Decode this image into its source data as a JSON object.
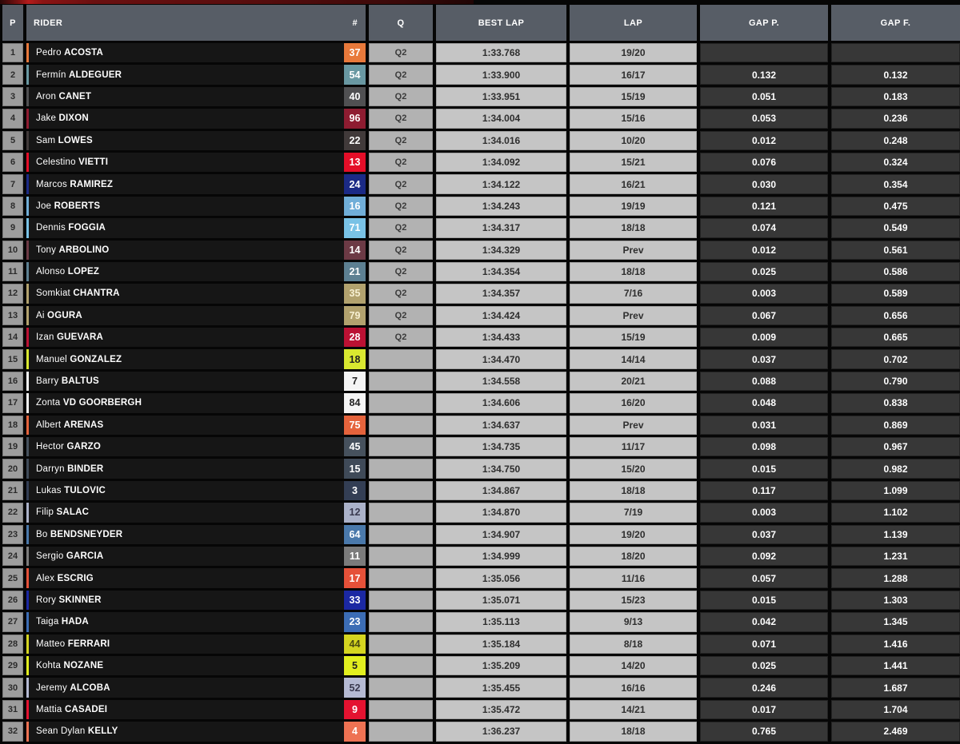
{
  "colors": {
    "top_bar_red": "#8a1414",
    "header_bg": "#575d66",
    "position_cell_bg": "#9d9d9d",
    "rider_cell_bg": "#161616",
    "q_cell_bg": "#b2b2b2",
    "lap_cell_bg": "#c5c5c5",
    "gap_cell_bg": "#373737"
  },
  "table": {
    "headers": {
      "position": "P",
      "rider": "RIDER",
      "number": "#",
      "q": "Q",
      "best_lap": "BEST LAP",
      "lap": "LAP",
      "gap_prev": "GAP P.",
      "gap_first": "GAP F."
    },
    "rows": [
      {
        "pos": "1",
        "first": "Pedro",
        "last": "ACOSTA",
        "num": "37",
        "num_bg": "#e8793b",
        "num_fg": "#ffffff",
        "q": "Q2",
        "best_lap": "1:33.768",
        "lap": "19/20",
        "gap_p": "",
        "gap_f": ""
      },
      {
        "pos": "2",
        "first": "Fermín",
        "last": "ALDEGUER",
        "num": "54",
        "num_bg": "#6998a2",
        "num_fg": "#ffffff",
        "q": "Q2",
        "best_lap": "1:33.900",
        "lap": "16/17",
        "gap_p": "0.132",
        "gap_f": "0.132"
      },
      {
        "pos": "3",
        "first": "Aron",
        "last": "CANET",
        "num": "40",
        "num_bg": "#505052",
        "num_fg": "#ffffff",
        "q": "Q2",
        "best_lap": "1:33.951",
        "lap": "15/19",
        "gap_p": "0.051",
        "gap_f": "0.183"
      },
      {
        "pos": "4",
        "first": "Jake",
        "last": "DIXON",
        "num": "96",
        "num_bg": "#8e1c31",
        "num_fg": "#ffffff",
        "q": "Q2",
        "best_lap": "1:34.004",
        "lap": "15/16",
        "gap_p": "0.053",
        "gap_f": "0.236"
      },
      {
        "pos": "5",
        "first": "Sam",
        "last": "LOWES",
        "num": "22",
        "num_bg": "#413a3a",
        "num_fg": "#ffffff",
        "q": "Q2",
        "best_lap": "1:34.016",
        "lap": "10/20",
        "gap_p": "0.012",
        "gap_f": "0.248"
      },
      {
        "pos": "6",
        "first": "Celestino",
        "last": "VIETTI",
        "num": "13",
        "num_bg": "#e40e28",
        "num_fg": "#ffffff",
        "q": "Q2",
        "best_lap": "1:34.092",
        "lap": "15/21",
        "gap_p": "0.076",
        "gap_f": "0.324"
      },
      {
        "pos": "7",
        "first": "Marcos",
        "last": "RAMIREZ",
        "num": "24",
        "num_bg": "#1b2a86",
        "num_fg": "#ffffff",
        "q": "Q2",
        "best_lap": "1:34.122",
        "lap": "16/21",
        "gap_p": "0.030",
        "gap_f": "0.354"
      },
      {
        "pos": "8",
        "first": "Joe",
        "last": "ROBERTS",
        "num": "16",
        "num_bg": "#70aed8",
        "num_fg": "#ffffff",
        "q": "Q2",
        "best_lap": "1:34.243",
        "lap": "19/19",
        "gap_p": "0.121",
        "gap_f": "0.475"
      },
      {
        "pos": "9",
        "first": "Dennis",
        "last": "FOGGIA",
        "num": "71",
        "num_bg": "#79c2e6",
        "num_fg": "#ffffff",
        "q": "Q2",
        "best_lap": "1:34.317",
        "lap": "18/18",
        "gap_p": "0.074",
        "gap_f": "0.549"
      },
      {
        "pos": "10",
        "first": "Tony",
        "last": "ARBOLINO",
        "num": "14",
        "num_bg": "#6c3a45",
        "num_fg": "#ffffff",
        "q": "Q2",
        "best_lap": "1:34.329",
        "lap": "Prev",
        "gap_p": "0.012",
        "gap_f": "0.561"
      },
      {
        "pos": "11",
        "first": "Alonso",
        "last": "LOPEZ",
        "num": "21",
        "num_bg": "#5d8092",
        "num_fg": "#ffffff",
        "q": "Q2",
        "best_lap": "1:34.354",
        "lap": "18/18",
        "gap_p": "0.025",
        "gap_f": "0.586"
      },
      {
        "pos": "12",
        "first": "Somkiat",
        "last": "CHANTRA",
        "num": "35",
        "num_bg": "#b2a26e",
        "num_fg": "#f7f0d2",
        "q": "Q2",
        "best_lap": "1:34.357",
        "lap": "7/16",
        "gap_p": "0.003",
        "gap_f": "0.589"
      },
      {
        "pos": "13",
        "first": "Ai",
        "last": "OGURA",
        "num": "79",
        "num_bg": "#b2a26e",
        "num_fg": "#f7f0d2",
        "q": "Q2",
        "best_lap": "1:34.424",
        "lap": "Prev",
        "gap_p": "0.067",
        "gap_f": "0.656"
      },
      {
        "pos": "14",
        "first": "Izan",
        "last": "GUEVARA",
        "num": "28",
        "num_bg": "#bb1133",
        "num_fg": "#ffffff",
        "q": "Q2",
        "best_lap": "1:34.433",
        "lap": "15/19",
        "gap_p": "0.009",
        "gap_f": "0.665"
      },
      {
        "pos": "15",
        "first": "Manuel",
        "last": "GONZALEZ",
        "num": "18",
        "num_bg": "#d9e830",
        "num_fg": "#222222",
        "q": "",
        "best_lap": "1:34.470",
        "lap": "14/14",
        "gap_p": "0.037",
        "gap_f": "0.702"
      },
      {
        "pos": "16",
        "first": "Barry",
        "last": "BALTUS",
        "num": "7",
        "num_bg": "#f5f5f5",
        "num_fg": "#222222",
        "q": "",
        "best_lap": "1:34.558",
        "lap": "20/21",
        "gap_p": "0.088",
        "gap_f": "0.790"
      },
      {
        "pos": "17",
        "first": "Zonta",
        "last": "VD GOORBERGH",
        "num": "84",
        "num_bg": "#f5f5f5",
        "num_fg": "#222222",
        "q": "",
        "best_lap": "1:34.606",
        "lap": "16/20",
        "gap_p": "0.048",
        "gap_f": "0.838"
      },
      {
        "pos": "18",
        "first": "Albert",
        "last": "ARENAS",
        "num": "75",
        "num_bg": "#e5633c",
        "num_fg": "#ffffff",
        "q": "",
        "best_lap": "1:34.637",
        "lap": "Prev",
        "gap_p": "0.031",
        "gap_f": "0.869"
      },
      {
        "pos": "19",
        "first": "Hector",
        "last": "GARZO",
        "num": "45",
        "num_bg": "#46515d",
        "num_fg": "#ffffff",
        "q": "",
        "best_lap": "1:34.735",
        "lap": "11/17",
        "gap_p": "0.098",
        "gap_f": "0.967"
      },
      {
        "pos": "20",
        "first": "Darryn",
        "last": "BINDER",
        "num": "15",
        "num_bg": "#3f4a58",
        "num_fg": "#ffffff",
        "q": "",
        "best_lap": "1:34.750",
        "lap": "15/20",
        "gap_p": "0.015",
        "gap_f": "0.982"
      },
      {
        "pos": "21",
        "first": "Lukas",
        "last": "TULOVIC",
        "num": "3",
        "num_bg": "#333e54",
        "num_fg": "#ffffff",
        "q": "",
        "best_lap": "1:34.867",
        "lap": "18/18",
        "gap_p": "0.117",
        "gap_f": "1.099"
      },
      {
        "pos": "22",
        "first": "Filip",
        "last": "SALAC",
        "num": "12",
        "num_bg": "#abb2c9",
        "num_fg": "#3a3a50",
        "q": "",
        "best_lap": "1:34.870",
        "lap": "7/19",
        "gap_p": "0.003",
        "gap_f": "1.102"
      },
      {
        "pos": "23",
        "first": "Bo",
        "last": "BENDSNEYDER",
        "num": "64",
        "num_bg": "#4a79ab",
        "num_fg": "#ffffff",
        "q": "",
        "best_lap": "1:34.907",
        "lap": "19/20",
        "gap_p": "0.037",
        "gap_f": "1.139"
      },
      {
        "pos": "24",
        "first": "Sergio",
        "last": "GARCIA",
        "num": "11",
        "num_bg": "#7b7b7b",
        "num_fg": "#ffffff",
        "q": "",
        "best_lap": "1:34.999",
        "lap": "18/20",
        "gap_p": "0.092",
        "gap_f": "1.231"
      },
      {
        "pos": "25",
        "first": "Alex",
        "last": "ESCRIG",
        "num": "17",
        "num_bg": "#e55139",
        "num_fg": "#ffffff",
        "q": "",
        "best_lap": "1:35.056",
        "lap": "11/16",
        "gap_p": "0.057",
        "gap_f": "1.288"
      },
      {
        "pos": "26",
        "first": "Rory",
        "last": "SKINNER",
        "num": "33",
        "num_bg": "#1b28a3",
        "num_fg": "#ffffff",
        "q": "",
        "best_lap": "1:35.071",
        "lap": "15/23",
        "gap_p": "0.015",
        "gap_f": "1.303"
      },
      {
        "pos": "27",
        "first": "Taiga",
        "last": "HADA",
        "num": "23",
        "num_bg": "#3c6db5",
        "num_fg": "#ffffff",
        "q": "",
        "best_lap": "1:35.113",
        "lap": "9/13",
        "gap_p": "0.042",
        "gap_f": "1.345"
      },
      {
        "pos": "28",
        "first": "Matteo",
        "last": "FERRARI",
        "num": "44",
        "num_bg": "#d5d520",
        "num_fg": "#4a4a10",
        "q": "",
        "best_lap": "1:35.184",
        "lap": "8/18",
        "gap_p": "0.071",
        "gap_f": "1.416"
      },
      {
        "pos": "29",
        "first": "Kohta",
        "last": "NOZANE",
        "num": "5",
        "num_bg": "#e2ef1f",
        "num_fg": "#222222",
        "q": "",
        "best_lap": "1:35.209",
        "lap": "14/20",
        "gap_p": "0.025",
        "gap_f": "1.441"
      },
      {
        "pos": "30",
        "first": "Jeremy",
        "last": "ALCOBA",
        "num": "52",
        "num_bg": "#b5bad3",
        "num_fg": "#3a3a50",
        "q": "",
        "best_lap": "1:35.455",
        "lap": "16/16",
        "gap_p": "0.246",
        "gap_f": "1.687"
      },
      {
        "pos": "31",
        "first": "Mattia",
        "last": "CASADEI",
        "num": "9",
        "num_bg": "#e41230",
        "num_fg": "#ffffff",
        "q": "",
        "best_lap": "1:35.472",
        "lap": "14/21",
        "gap_p": "0.017",
        "gap_f": "1.704"
      },
      {
        "pos": "32",
        "first": "Sean Dylan",
        "last": "KELLY",
        "num": "4",
        "num_bg": "#ee7253",
        "num_fg": "#ffffff",
        "q": "",
        "best_lap": "1:36.237",
        "lap": "18/18",
        "gap_p": "0.765",
        "gap_f": "2.469"
      }
    ]
  }
}
